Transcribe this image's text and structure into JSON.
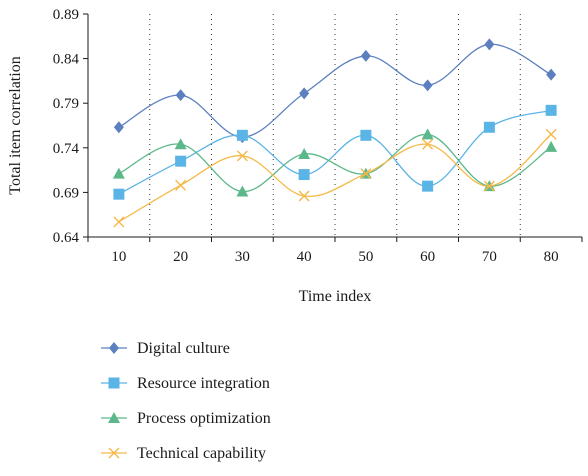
{
  "chart_data": {
    "type": "line",
    "title": "",
    "xlabel": "Time index",
    "ylabel": "Total item correlation",
    "x": [
      10,
      20,
      30,
      40,
      50,
      60,
      70,
      80
    ],
    "x_ticks": [
      "10",
      "20",
      "30",
      "40",
      "50",
      "60",
      "70",
      "80"
    ],
    "ylim": [
      0.64,
      0.89
    ],
    "y_ticks": [
      "0.64",
      "0.69",
      "0.74",
      "0.79",
      "0.84",
      "0.89"
    ],
    "grid": "vertical dotted lines between categories",
    "legend_position": "bottom",
    "series": [
      {
        "name": "Digital culture",
        "color": "#5b7fbf",
        "marker": "diamond",
        "values": [
          0.763,
          0.799,
          0.752,
          0.801,
          0.843,
          0.81,
          0.856,
          0.822
        ]
      },
      {
        "name": "Resource integration",
        "color": "#5bb4e6",
        "marker": "square",
        "values": [
          0.688,
          0.725,
          0.754,
          0.71,
          0.754,
          0.697,
          0.763,
          0.782
        ]
      },
      {
        "name": "Process optimization",
        "color": "#5cb88a",
        "marker": "triangle",
        "values": [
          0.711,
          0.744,
          0.691,
          0.733,
          0.711,
          0.755,
          0.697,
          0.741
        ]
      },
      {
        "name": "Technical capability",
        "color": "#f5b94a",
        "marker": "x",
        "values": [
          0.657,
          0.698,
          0.731,
          0.686,
          0.711,
          0.744,
          0.697,
          0.755
        ]
      }
    ]
  }
}
